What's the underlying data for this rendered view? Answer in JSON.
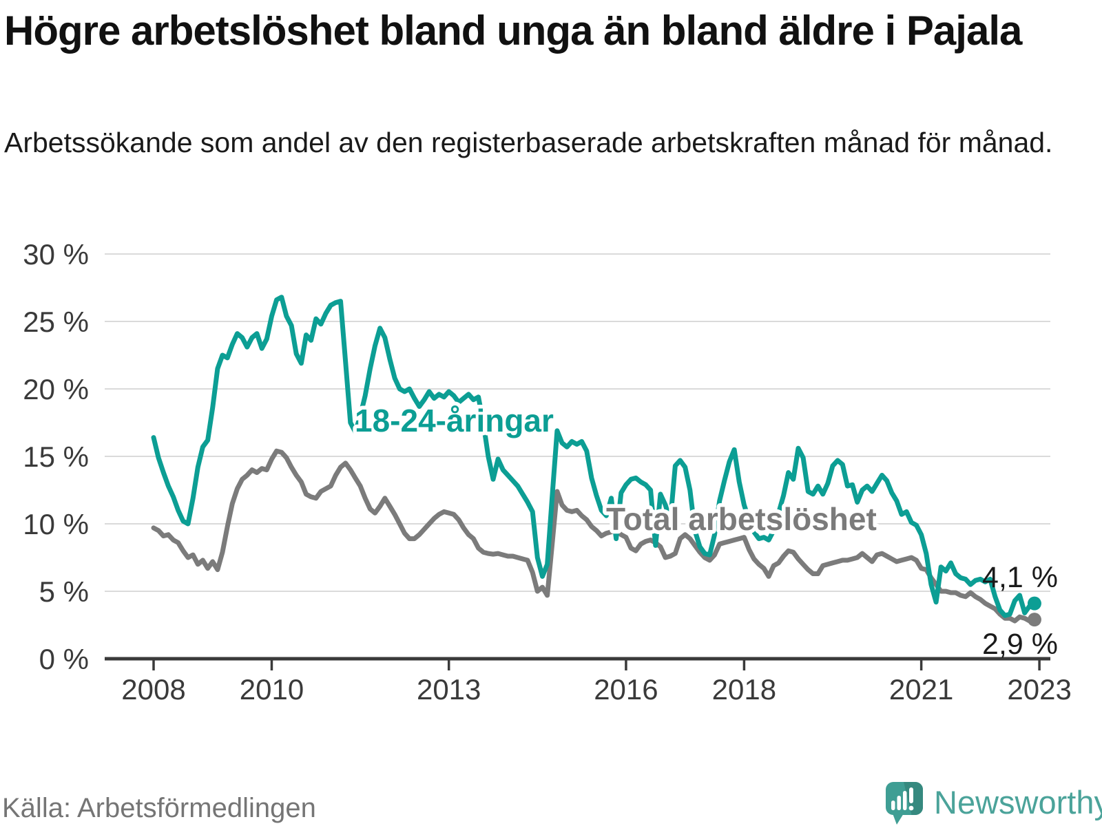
{
  "title": "Högre arbetslöshet bland unga än bland äldre i Pajala",
  "subtitle": "Arbetssökande som andel av den registerbaserade arbetskraften månad för månad.",
  "source": "Källa: Arbetsförmedlingen",
  "brand": {
    "name": "Newsworthy",
    "bubble_color": "#3f9e94",
    "fold_color": "#36897f",
    "text_color": "#4ba39a"
  },
  "chart_data": {
    "type": "line",
    "x_start": "2008-01",
    "x_end": "2022-12",
    "x_tick_years": [
      2008,
      2010,
      2013,
      2016,
      2018,
      2021,
      2023
    ],
    "x_tick_labels": [
      "2008",
      "2010",
      "2013",
      "2016",
      "2018",
      "2021",
      "2023"
    ],
    "y_ticks": [
      0,
      5,
      10,
      15,
      20,
      25,
      30
    ],
    "y_tick_labels": [
      "0 %",
      "5 %",
      "10 %",
      "15 %",
      "20 %",
      "25 %",
      "30 %"
    ],
    "ylim": [
      0,
      30
    ],
    "grid": "horizontal",
    "axis_color": "#3a3a3a",
    "grid_color": "#dadada",
    "series": [
      {
        "name": "Total arbetslöshet",
        "color": "#7b7b7b",
        "end_label": "2,9 %",
        "end_value": 2.9,
        "values": [
          9.7,
          9.5,
          9.1,
          9.2,
          8.8,
          8.6,
          8.0,
          7.5,
          7.7,
          7.0,
          7.3,
          6.7,
          7.2,
          6.6,
          7.9,
          9.8,
          11.5,
          12.6,
          13.3,
          13.6,
          14.0,
          13.8,
          14.1,
          14.0,
          14.8,
          15.4,
          15.3,
          14.9,
          14.2,
          13.6,
          13.1,
          12.2,
          12.0,
          11.9,
          12.4,
          12.6,
          12.8,
          13.6,
          14.2,
          14.5,
          14.0,
          13.4,
          12.8,
          11.9,
          11.1,
          10.8,
          11.3,
          11.9,
          11.3,
          10.7,
          10.0,
          9.3,
          8.9,
          8.9,
          9.2,
          9.6,
          10.0,
          10.4,
          10.7,
          10.9,
          10.8,
          10.7,
          10.3,
          9.7,
          9.2,
          8.9,
          8.2,
          7.9,
          7.8,
          7.75,
          7.8,
          7.7,
          7.6,
          7.6,
          7.5,
          7.4,
          7.3,
          6.4,
          5.0,
          5.3,
          4.7,
          8.5,
          12.4,
          11.4,
          11.0,
          10.9,
          11.0,
          10.6,
          10.3,
          9.8,
          9.5,
          9.1,
          9.3,
          9.4,
          9.5,
          9.2,
          9.0,
          8.2,
          8.0,
          8.5,
          8.7,
          8.8,
          8.6,
          8.3,
          7.5,
          7.6,
          7.8,
          8.9,
          9.2,
          8.9,
          8.4,
          7.9,
          7.5,
          7.3,
          7.7,
          8.5,
          8.6,
          8.7,
          8.8,
          8.9,
          9.0,
          8.1,
          7.4,
          7.0,
          6.7,
          6.1,
          6.9,
          7.1,
          7.6,
          8.0,
          7.9,
          7.4,
          7.0,
          6.6,
          6.3,
          6.3,
          6.9,
          7.0,
          7.1,
          7.2,
          7.3,
          7.3,
          7.4,
          7.5,
          7.8,
          7.5,
          7.2,
          7.7,
          7.8,
          7.6,
          7.4,
          7.2,
          7.3,
          7.4,
          7.5,
          7.3,
          6.7,
          6.6,
          6.0,
          5.5,
          5.0,
          5.0,
          4.9,
          4.9,
          4.7,
          4.6,
          4.9,
          4.6,
          4.4,
          4.1,
          3.9,
          3.7,
          3.3,
          3.0,
          3.0,
          2.8,
          3.1,
          3.0,
          2.8,
          2.9
        ]
      },
      {
        "name": "18-24-åringar",
        "color": "#0c9e94",
        "end_label": "4,1 %",
        "end_value": 4.1,
        "values": [
          16.4,
          14.9,
          13.8,
          12.8,
          12.0,
          11.0,
          10.2,
          10.0,
          11.9,
          14.2,
          15.7,
          16.2,
          18.6,
          21.5,
          22.5,
          22.3,
          23.3,
          24.1,
          23.8,
          23.1,
          23.8,
          24.1,
          23.0,
          23.7,
          25.4,
          26.6,
          26.8,
          25.4,
          24.7,
          22.6,
          21.9,
          24.0,
          23.6,
          25.2,
          24.8,
          25.6,
          26.2,
          26.4,
          26.5,
          22.0,
          17.5,
          16.8,
          18.0,
          19.5,
          21.5,
          23.2,
          24.5,
          23.8,
          22.2,
          20.8,
          20.0,
          19.8,
          20.0,
          19.3,
          18.7,
          19.2,
          19.8,
          19.3,
          19.6,
          19.4,
          19.8,
          19.5,
          19.0,
          19.3,
          19.6,
          19.2,
          19.4,
          17.5,
          15.0,
          13.3,
          14.8,
          14.0,
          13.6,
          13.2,
          12.8,
          12.2,
          11.6,
          10.9,
          7.5,
          6.1,
          7.0,
          12.0,
          16.9,
          16.0,
          15.7,
          16.1,
          15.9,
          16.1,
          15.4,
          13.4,
          12.1,
          11.0,
          10.6,
          11.9,
          8.9,
          12.3,
          12.9,
          13.3,
          13.4,
          13.1,
          12.9,
          12.5,
          8.4,
          12.2,
          11.4,
          10.2,
          14.3,
          14.7,
          14.2,
          12.5,
          9.5,
          8.3,
          7.8,
          7.7,
          9.2,
          11.7,
          13.2,
          14.6,
          15.5,
          13.1,
          11.4,
          10.3,
          9.4,
          8.9,
          9.0,
          8.8,
          9.5,
          10.8,
          12.1,
          13.8,
          13.3,
          15.6,
          14.9,
          12.4,
          12.2,
          12.8,
          12.2,
          13.0,
          14.3,
          14.7,
          14.4,
          12.8,
          12.9,
          11.6,
          12.5,
          12.8,
          12.4,
          13.0,
          13.6,
          13.2,
          12.3,
          11.7,
          10.7,
          10.9,
          10.1,
          9.9,
          9.2,
          7.8,
          5.5,
          4.2,
          6.8,
          6.5,
          7.1,
          6.3,
          6.0,
          5.9,
          5.5,
          5.8,
          5.9,
          5.7,
          5.9,
          4.6,
          3.6,
          3.2,
          3.3,
          4.3,
          4.7,
          3.4,
          3.9,
          4.1
        ]
      }
    ]
  }
}
